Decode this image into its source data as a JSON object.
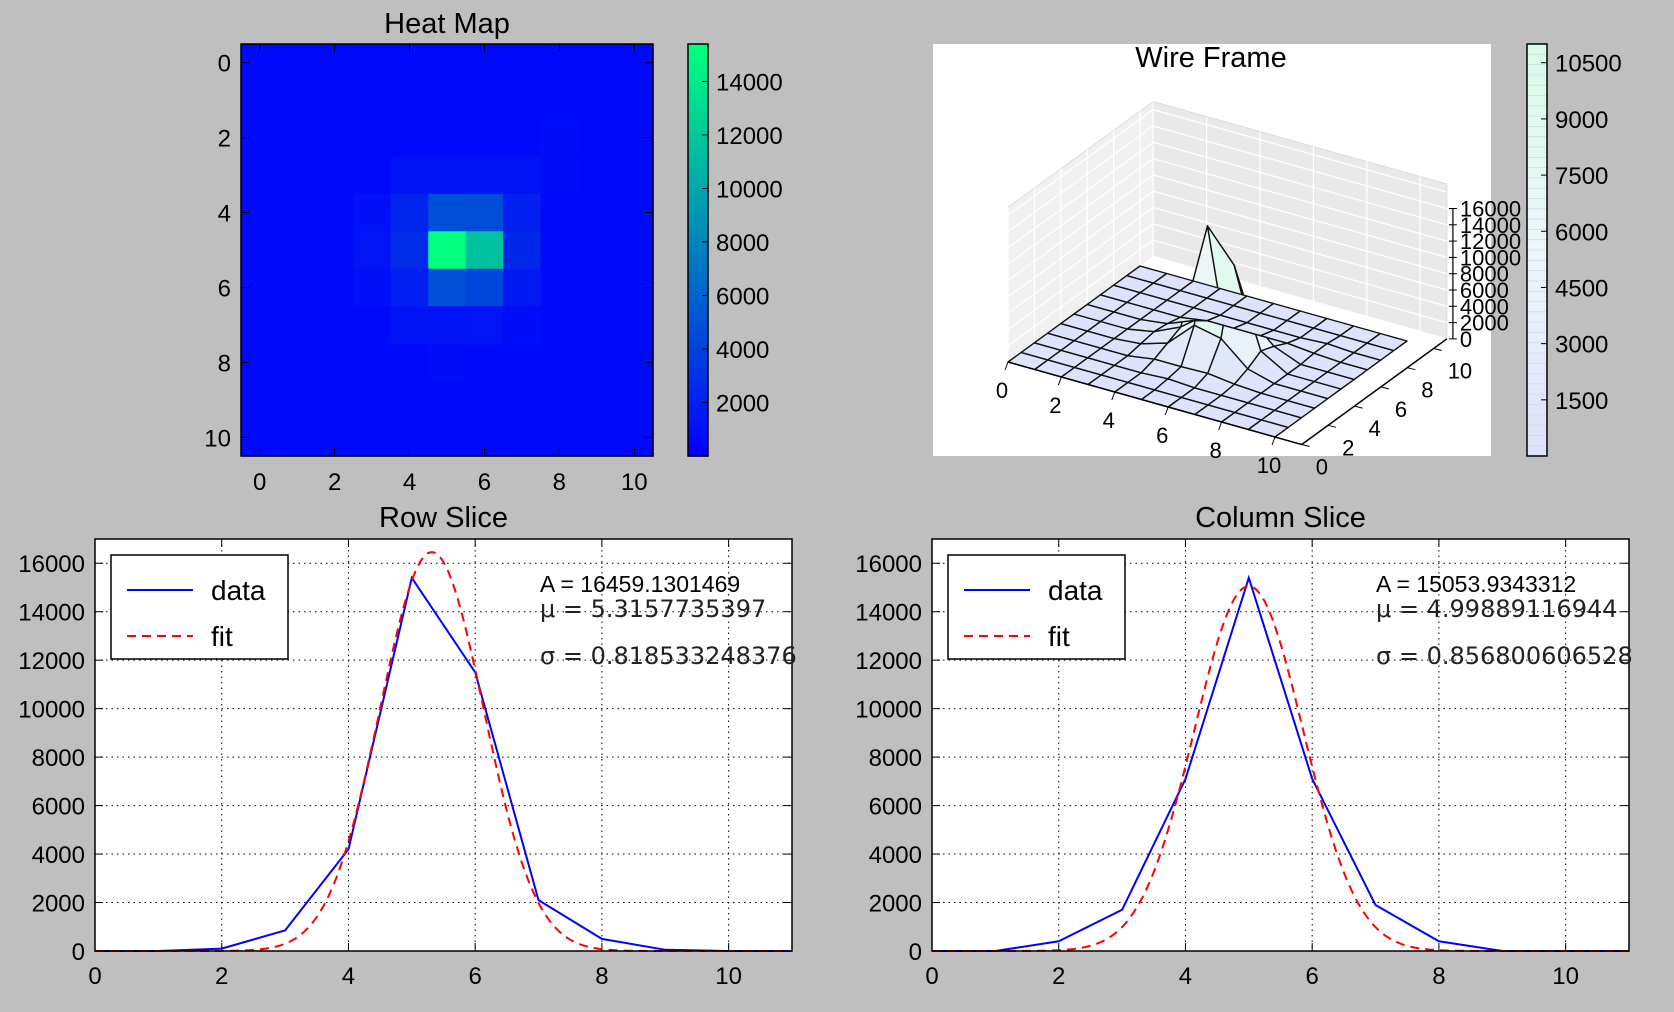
{
  "chart_data": [
    {
      "type": "heatmap",
      "title": "Heat Map",
      "x_ticks": [
        "0",
        "2",
        "4",
        "6",
        "8",
        "10"
      ],
      "y_ticks": [
        "0",
        "2",
        "4",
        "6",
        "8",
        "10"
      ],
      "xlim": [
        -0.5,
        10.5
      ],
      "ylim": [
        10.5,
        -0.5
      ],
      "colormap": "winter",
      "colorbar": {
        "range": [
          0,
          15400
        ],
        "ticks": [
          "2000",
          "4000",
          "6000",
          "8000",
          "10000",
          "12000",
          "14000"
        ]
      },
      "values": [
        [
          0,
          0,
          0,
          0,
          0,
          0,
          0,
          0,
          0,
          0,
          0
        ],
        [
          0,
          0,
          0,
          0,
          0,
          0,
          0,
          0,
          0,
          0,
          0
        ],
        [
          0,
          0,
          0,
          0,
          0,
          0,
          0,
          0,
          200,
          0,
          0
        ],
        [
          0,
          0,
          0,
          0,
          500,
          500,
          500,
          500,
          200,
          0,
          0
        ],
        [
          0,
          0,
          0,
          400,
          1700,
          4400,
          4200,
          1300,
          0,
          0,
          0
        ],
        [
          0,
          0,
          0,
          600,
          2100,
          15400,
          11500,
          1900,
          0,
          0,
          0
        ],
        [
          0,
          0,
          0,
          300,
          1300,
          4400,
          3700,
          900,
          0,
          0,
          0
        ],
        [
          0,
          0,
          0,
          0,
          500,
          500,
          600,
          200,
          0,
          0,
          0
        ],
        [
          0,
          0,
          0,
          0,
          0,
          200,
          0,
          0,
          0,
          0,
          0
        ],
        [
          0,
          0,
          0,
          0,
          0,
          0,
          0,
          0,
          0,
          0,
          0
        ],
        [
          0,
          0,
          0,
          0,
          0,
          0,
          0,
          0,
          0,
          0,
          0
        ]
      ]
    },
    {
      "type": "surface",
      "title": "Wire Frame",
      "x_ticks": [
        "0",
        "2",
        "4",
        "6",
        "8",
        "10"
      ],
      "y_ticks": [
        "0",
        "2",
        "4",
        "6",
        "8",
        "10"
      ],
      "z_ticks": [
        "0",
        "2000",
        "4000",
        "6000",
        "8000",
        "10000",
        "12000",
        "14000",
        "16000"
      ],
      "colorbar": {
        "range": [
          0,
          11000
        ],
        "ticks": [
          "1500",
          "3000",
          "4500",
          "6000",
          "7500",
          "9000",
          "10500"
        ]
      }
    },
    {
      "type": "line",
      "title": "Row Slice",
      "xlim": [
        0,
        11
      ],
      "ylim": [
        0,
        17000
      ],
      "grid": true,
      "legend": "upper-left",
      "x_ticks": [
        "0",
        "2",
        "4",
        "6",
        "8",
        "10"
      ],
      "y_ticks": [
        "0",
        "2000",
        "4000",
        "6000",
        "8000",
        "10000",
        "12000",
        "14000",
        "16000"
      ],
      "series": [
        {
          "name": "data",
          "style": "solid",
          "color": "#0000ff",
          "x": [
            0,
            1,
            2,
            3,
            4,
            5,
            6,
            7,
            8,
            9,
            10,
            11
          ],
          "y": [
            0,
            0,
            100,
            850,
            4200,
            15400,
            11500,
            2100,
            500,
            50,
            0,
            0
          ]
        },
        {
          "name": "fit",
          "style": "dashed",
          "color": "#ff0000",
          "gaussian": {
            "A": 16459.1301469,
            "mu": 5.3157735397,
            "sigma": 0.818533248376
          }
        }
      ],
      "annotations": [
        "A = 16459.1301469",
        "μ = 5.3157735397",
        "σ = 0.818533248376"
      ]
    },
    {
      "type": "line",
      "title": "Column Slice",
      "xlim": [
        0,
        11
      ],
      "ylim": [
        0,
        17000
      ],
      "grid": true,
      "legend": "upper-left",
      "x_ticks": [
        "0",
        "2",
        "4",
        "6",
        "8",
        "10"
      ],
      "y_ticks": [
        "0",
        "2000",
        "4000",
        "6000",
        "8000",
        "10000",
        "12000",
        "14000",
        "16000"
      ],
      "series": [
        {
          "name": "data",
          "style": "solid",
          "color": "#0000ff",
          "x": [
            0,
            1,
            2,
            3,
            4,
            5,
            6,
            7,
            8,
            9,
            10,
            11
          ],
          "y": [
            0,
            0,
            400,
            1700,
            7100,
            15400,
            7100,
            1900,
            400,
            0,
            0,
            0
          ]
        },
        {
          "name": "fit",
          "style": "dashed",
          "color": "#ff0000",
          "gaussian": {
            "A": 15053.9343312,
            "mu": 4.99889116944,
            "sigma": 0.856800606528
          }
        }
      ],
      "annotations": [
        "A = 15053.9343312",
        "μ = 4.99889116944",
        "σ = 0.856800606528"
      ]
    }
  ]
}
